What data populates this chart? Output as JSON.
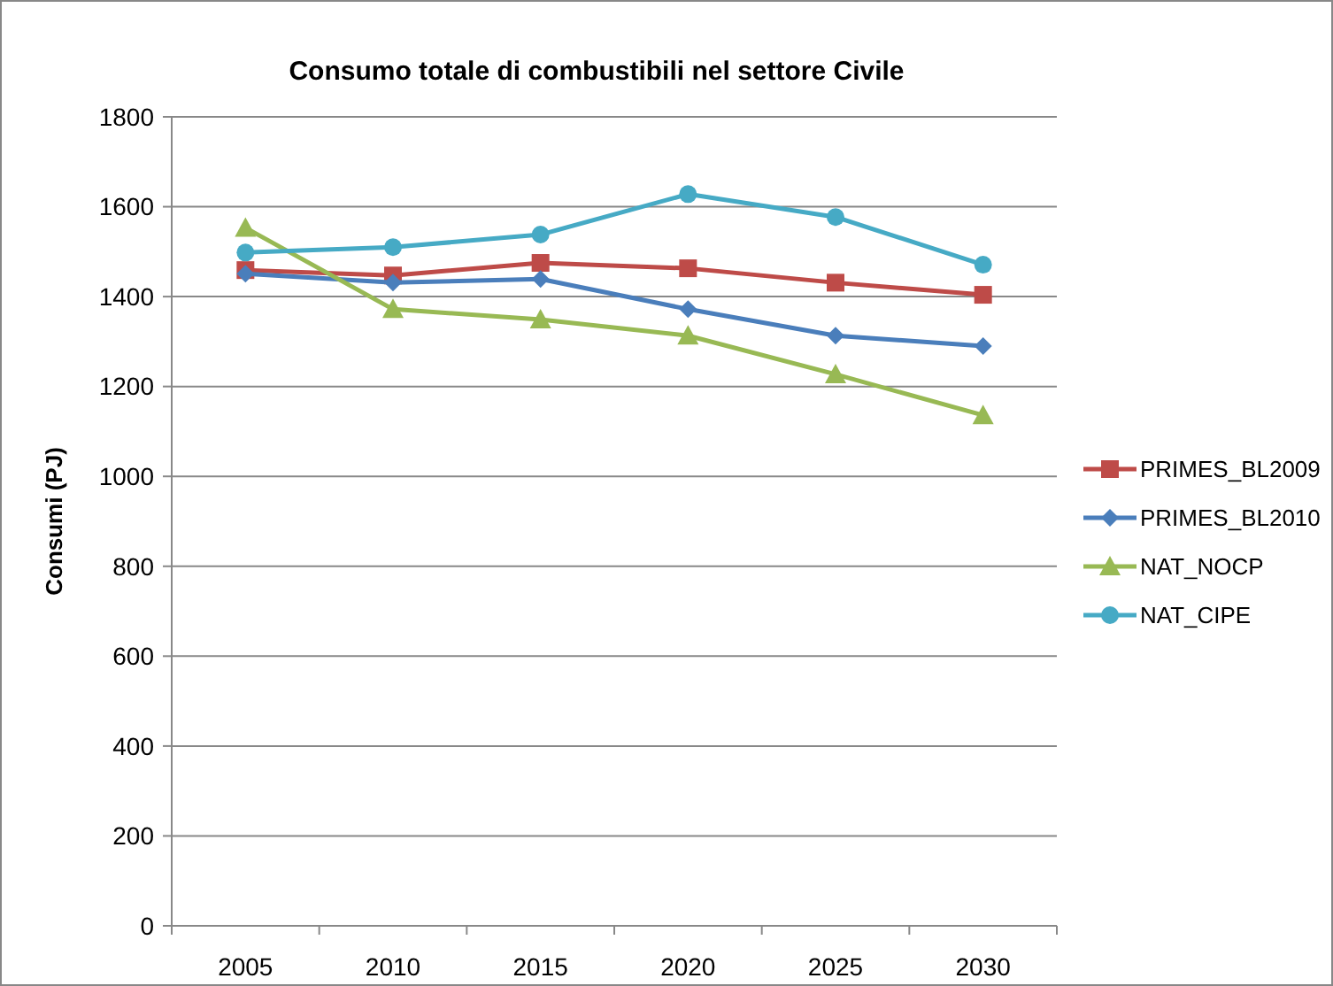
{
  "chart_data": {
    "type": "line",
    "title": "Consumo totale di combustibili nel settore Civile",
    "ylabel": "Consumi (PJ)",
    "categories": [
      "2005",
      "2010",
      "2015",
      "2020",
      "2025",
      "2030"
    ],
    "series": [
      {
        "name": "PRIMES_BL2009",
        "color": "#be4b48",
        "marker": "square",
        "values": [
          1459,
          1447,
          1475,
          1463,
          1431,
          1404
        ]
      },
      {
        "name": "PRIMES_BL2010",
        "color": "#4a7ebb",
        "marker": "diamond",
        "values": [
          1451,
          1431,
          1439,
          1372,
          1313,
          1290
        ]
      },
      {
        "name": "NAT_NOCP",
        "color": "#98b954",
        "marker": "triangle",
        "values": [
          1553,
          1372,
          1349,
          1313,
          1227,
          1136
        ]
      },
      {
        "name": "NAT_CIPE",
        "color": "#46aac5",
        "marker": "circle",
        "values": [
          1498,
          1510,
          1538,
          1628,
          1577,
          1471
        ]
      }
    ],
    "ylim": [
      0,
      1800
    ],
    "yticks": [
      0,
      200,
      400,
      600,
      800,
      1000,
      1200,
      1400,
      1600,
      1800
    ],
    "grid": "y",
    "legend": "right",
    "line_style": "solid"
  }
}
